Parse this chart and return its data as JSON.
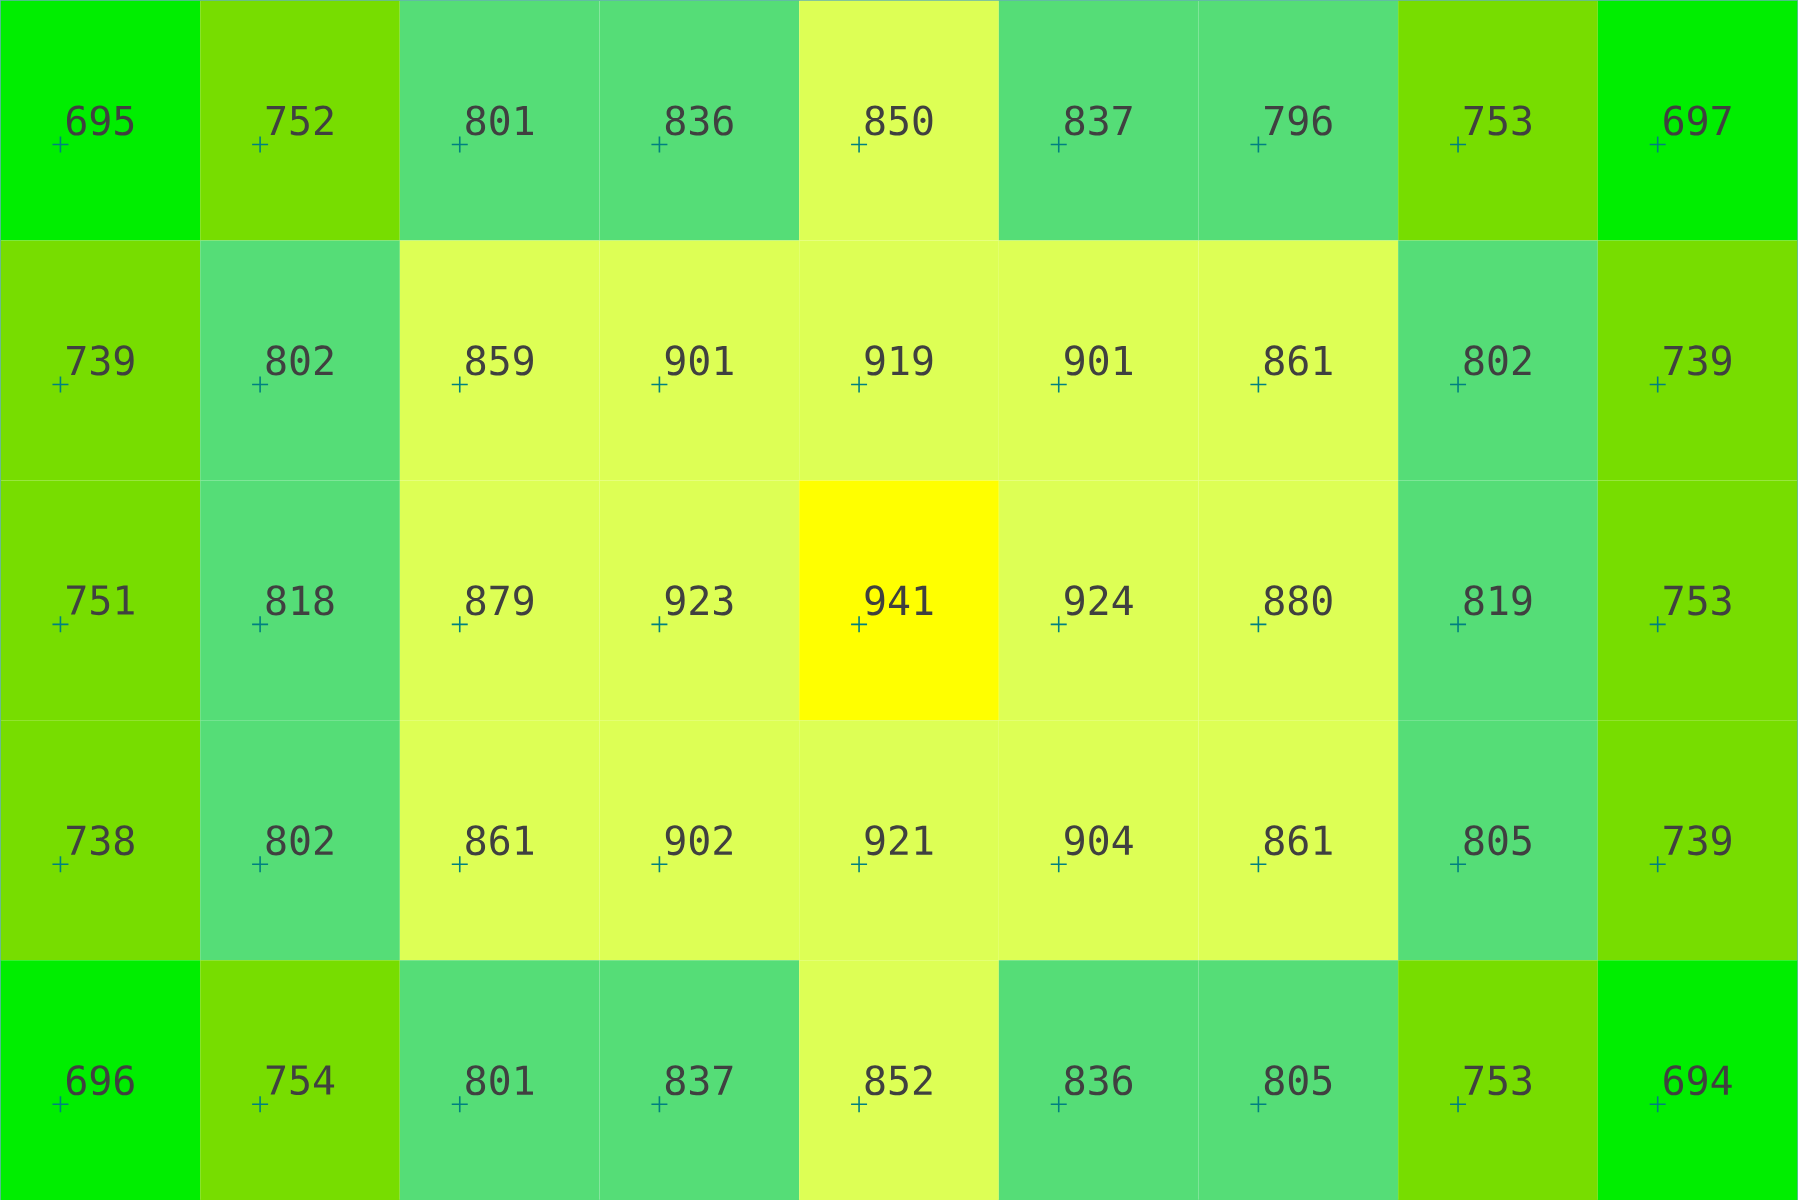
{
  "chart_data": {
    "type": "heatmap",
    "categories": [
      null,
      null,
      null,
      null,
      null,
      null,
      null,
      null,
      null
    ],
    "y_categories": [
      null,
      null,
      null,
      null,
      null
    ],
    "cells": [
      [
        695,
        752,
        801,
        836,
        850,
        837,
        796,
        753,
        697
      ],
      [
        739,
        802,
        859,
        901,
        919,
        901,
        861,
        802,
        739
      ],
      [
        751,
        818,
        879,
        923,
        941,
        924,
        880,
        819,
        753
      ],
      [
        738,
        802,
        861,
        902,
        921,
        904,
        861,
        805,
        739
      ],
      [
        696,
        754,
        801,
        837,
        852,
        836,
        805,
        753,
        694
      ]
    ],
    "colors": [
      [
        "#00ee00",
        "#77dd00",
        "#55dd77",
        "#55dd77",
        "#ddff55",
        "#55dd77",
        "#55dd77",
        "#77dd00",
        "#00ee00"
      ],
      [
        "#77dd00",
        "#55dd77",
        "#ddff55",
        "#ddff55",
        "#ddff55",
        "#ddff55",
        "#ddff55",
        "#55dd77",
        "#77dd00"
      ],
      [
        "#77dd00",
        "#55dd77",
        "#ddff55",
        "#ddff55",
        "#ffff00",
        "#ddff55",
        "#ddff55",
        "#55dd77",
        "#77dd00"
      ],
      [
        "#77dd00",
        "#55dd77",
        "#ddff55",
        "#ddff55",
        "#ddff55",
        "#ddff55",
        "#ddff55",
        "#55dd77",
        "#77dd00"
      ],
      [
        "#00ee00",
        "#77dd00",
        "#55dd77",
        "#55dd77",
        "#ddff55",
        "#55dd77",
        "#55dd77",
        "#77dd00",
        "#00ee00"
      ]
    ],
    "data_labels": true
  }
}
